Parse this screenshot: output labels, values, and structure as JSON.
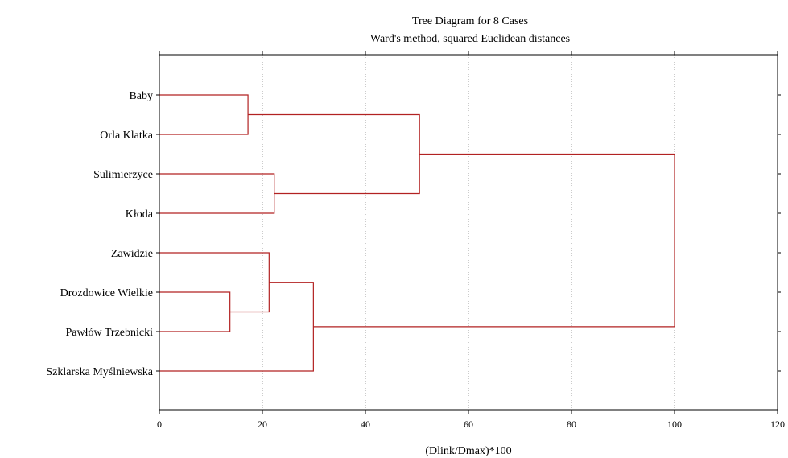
{
  "chart_data": {
    "type": "dendrogram",
    "title": "Tree Diagram for 8 Cases",
    "subtitle": "Ward's method, squared Euclidean distances",
    "xlabel": "(Dlink/Dmax)*100",
    "xlim": [
      0,
      120
    ],
    "xticks": [
      0,
      20,
      40,
      60,
      80,
      100,
      120
    ],
    "grid": true,
    "cases": [
      "Baby",
      "Orla Klatka",
      "Sulimierzyce",
      "Kłoda",
      "Zawidzie",
      "Drozdowice Wielkie",
      "Pawłów Trzebnicki",
      "Szklarska Myślniewska"
    ],
    "merges": [
      {
        "a": "Drozdowice Wielkie",
        "b": "Pawłów Trzebnicki",
        "height": 13.7
      },
      {
        "a": "Baby",
        "b": "Orla Klatka",
        "height": 17.2
      },
      {
        "a": "Zawidzie",
        "b": "Drozdowice Wielkie + Pawłów Trzebnicki",
        "height": 21.3
      },
      {
        "a": "Sulimierzyce",
        "b": "Kłoda",
        "height": 22.3
      },
      {
        "a": "Zawidzie + Drozdowice Wielkie + Pawłów Trzebnicki",
        "b": "Szklarska Myślniewska",
        "height": 29.9
      },
      {
        "a": "Baby + Orla Klatka",
        "b": "Sulimierzyce + Kłoda",
        "height": 50.5
      },
      {
        "a": "Baby + Orla Klatka + Sulimierzyce + Kłoda",
        "b": "Zawidzie + Drozdowice Wielkie + Pawłów Trzebnicki + Szklarska Myślniewska",
        "height": 100.0
      }
    ],
    "colors": {
      "link": "#b22222",
      "grid": "#9a9a9a",
      "axis": "#000000"
    }
  }
}
